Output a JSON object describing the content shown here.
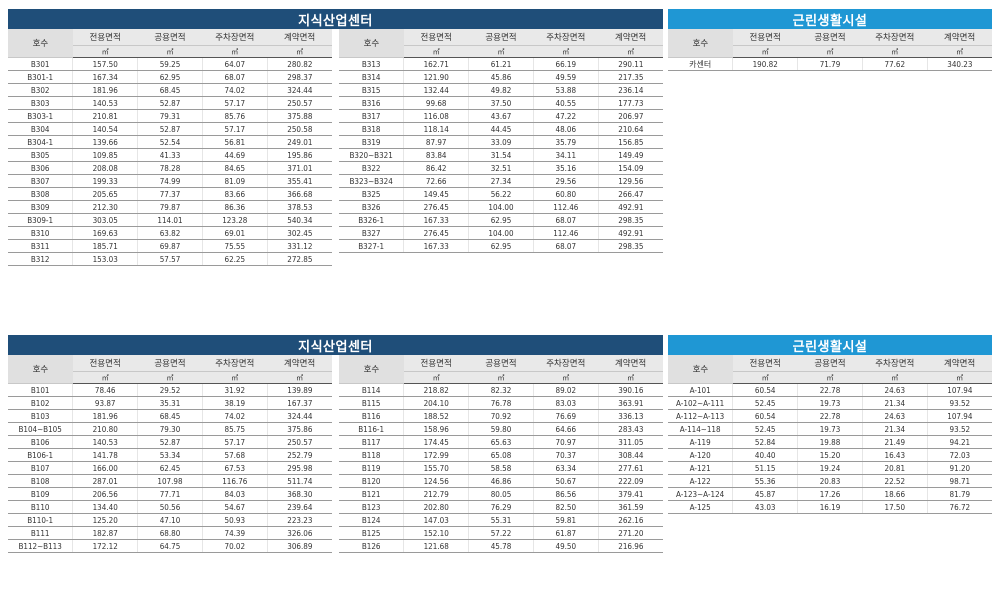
{
  "columns": {
    "code": "호수",
    "exclusive": "전용면적",
    "common": "공용면적",
    "parking": "주차장면적",
    "contract": "계약면적",
    "unit": "㎡"
  },
  "top": {
    "industrial_title": "지식산업센터",
    "facility_title": "근린생활시설",
    "table_a": [
      [
        "B301",
        "157.50",
        "59.25",
        "64.07",
        "280.82"
      ],
      [
        "B301-1",
        "167.34",
        "62.95",
        "68.07",
        "298.37"
      ],
      [
        "B302",
        "181.96",
        "68.45",
        "74.02",
        "324.44"
      ],
      [
        "B303",
        "140.53",
        "52.87",
        "57.17",
        "250.57"
      ],
      [
        "B303-1",
        "210.81",
        "79.31",
        "85.76",
        "375.88"
      ],
      [
        "B304",
        "140.54",
        "52.87",
        "57.17",
        "250.58"
      ],
      [
        "B304-1",
        "139.66",
        "52.54",
        "56.81",
        "249.01"
      ],
      [
        "B305",
        "109.85",
        "41.33",
        "44.69",
        "195.86"
      ],
      [
        "B306",
        "208.08",
        "78.28",
        "84.65",
        "371.01"
      ],
      [
        "B307",
        "199.33",
        "74.99",
        "81.09",
        "355.41"
      ],
      [
        "B308",
        "205.65",
        "77.37",
        "83.66",
        "366.68"
      ],
      [
        "B309",
        "212.30",
        "79.87",
        "86.36",
        "378.53"
      ],
      [
        "B309-1",
        "303.05",
        "114.01",
        "123.28",
        "540.34"
      ],
      [
        "B310",
        "169.63",
        "63.82",
        "69.01",
        "302.45"
      ],
      [
        "B311",
        "185.71",
        "69.87",
        "75.55",
        "331.12"
      ],
      [
        "B312",
        "153.03",
        "57.57",
        "62.25",
        "272.85"
      ]
    ],
    "table_b": [
      [
        "B313",
        "162.71",
        "61.21",
        "66.19",
        "290.11"
      ],
      [
        "B314",
        "121.90",
        "45.86",
        "49.59",
        "217.35"
      ],
      [
        "B315",
        "132.44",
        "49.82",
        "53.88",
        "236.14"
      ],
      [
        "B316",
        "99.68",
        "37.50",
        "40.55",
        "177.73"
      ],
      [
        "B317",
        "116.08",
        "43.67",
        "47.22",
        "206.97"
      ],
      [
        "B318",
        "118.14",
        "44.45",
        "48.06",
        "210.64"
      ],
      [
        "B319",
        "87.97",
        "33.09",
        "35.79",
        "156.85"
      ],
      [
        "B320~B321",
        "83.84",
        "31.54",
        "34.11",
        "149.49"
      ],
      [
        "B322",
        "86.42",
        "32.51",
        "35.16",
        "154.09"
      ],
      [
        "B323~B324",
        "72.66",
        "27.34",
        "29.56",
        "129.56"
      ],
      [
        "B325",
        "149.45",
        "56.22",
        "60.80",
        "266.47"
      ],
      [
        "B326",
        "276.45",
        "104.00",
        "112.46",
        "492.91"
      ],
      [
        "B326-1",
        "167.33",
        "62.95",
        "68.07",
        "298.35"
      ],
      [
        "B327",
        "276.45",
        "104.00",
        "112.46",
        "492.91"
      ],
      [
        "B327-1",
        "167.33",
        "62.95",
        "68.07",
        "298.35"
      ]
    ],
    "table_c": [
      [
        "카센터",
        "190.82",
        "71.79",
        "77.62",
        "340.23"
      ]
    ]
  },
  "bottom": {
    "industrial_title": "지식산업센터",
    "facility_title": "근린생활시설",
    "table_a": [
      [
        "B101",
        "78.46",
        "29.52",
        "31.92",
        "139.89"
      ],
      [
        "B102",
        "93.87",
        "35.31",
        "38.19",
        "167.37"
      ],
      [
        "B103",
        "181.96",
        "68.45",
        "74.02",
        "324.44"
      ],
      [
        "B104~B105",
        "210.80",
        "79.30",
        "85.75",
        "375.86"
      ],
      [
        "B106",
        "140.53",
        "52.87",
        "57.17",
        "250.57"
      ],
      [
        "B106-1",
        "141.78",
        "53.34",
        "57.68",
        "252.79"
      ],
      [
        "B107",
        "166.00",
        "62.45",
        "67.53",
        "295.98"
      ],
      [
        "B108",
        "287.01",
        "107.98",
        "116.76",
        "511.74"
      ],
      [
        "B109",
        "206.56",
        "77.71",
        "84.03",
        "368.30"
      ],
      [
        "B110",
        "134.40",
        "50.56",
        "54.67",
        "239.64"
      ],
      [
        "B110-1",
        "125.20",
        "47.10",
        "50.93",
        "223.23"
      ],
      [
        "B111",
        "182.87",
        "68.80",
        "74.39",
        "326.06"
      ],
      [
        "B112~B113",
        "172.12",
        "64.75",
        "70.02",
        "306.89"
      ]
    ],
    "table_b": [
      [
        "B114",
        "218.82",
        "82.32",
        "89.02",
        "390.16"
      ],
      [
        "B115",
        "204.10",
        "76.78",
        "83.03",
        "363.91"
      ],
      [
        "B116",
        "188.52",
        "70.92",
        "76.69",
        "336.13"
      ],
      [
        "B116-1",
        "158.96",
        "59.80",
        "64.66",
        "283.43"
      ],
      [
        "B117",
        "174.45",
        "65.63",
        "70.97",
        "311.05"
      ],
      [
        "B118",
        "172.99",
        "65.08",
        "70.37",
        "308.44"
      ],
      [
        "B119",
        "155.70",
        "58.58",
        "63.34",
        "277.61"
      ],
      [
        "B120",
        "124.56",
        "46.86",
        "50.67",
        "222.09"
      ],
      [
        "B121",
        "212.79",
        "80.05",
        "86.56",
        "379.41"
      ],
      [
        "B123",
        "202.80",
        "76.29",
        "82.50",
        "361.59"
      ],
      [
        "B124",
        "147.03",
        "55.31",
        "59.81",
        "262.16"
      ],
      [
        "B125",
        "152.10",
        "57.22",
        "61.87",
        "271.20"
      ],
      [
        "B126",
        "121.68",
        "45.78",
        "49.50",
        "216.96"
      ]
    ],
    "table_c": [
      [
        "A-101",
        "60.54",
        "22.78",
        "24.63",
        "107.94"
      ],
      [
        "A-102~A-111",
        "52.45",
        "19.73",
        "21.34",
        "93.52"
      ],
      [
        "A-112~A-113",
        "60.54",
        "22.78",
        "24.63",
        "107.94"
      ],
      [
        "A-114~118",
        "52.45",
        "19.73",
        "21.34",
        "93.52"
      ],
      [
        "A-119",
        "52.84",
        "19.88",
        "21.49",
        "94.21"
      ],
      [
        "A-120",
        "40.40",
        "15.20",
        "16.43",
        "72.03"
      ],
      [
        "A-121",
        "51.15",
        "19.24",
        "20.81",
        "91.20"
      ],
      [
        "A-122",
        "55.36",
        "20.83",
        "22.52",
        "98.71"
      ],
      [
        "A-123~A-124",
        "45.87",
        "17.26",
        "18.66",
        "81.79"
      ],
      [
        "A-125",
        "43.03",
        "16.19",
        "17.50",
        "76.72"
      ]
    ]
  }
}
